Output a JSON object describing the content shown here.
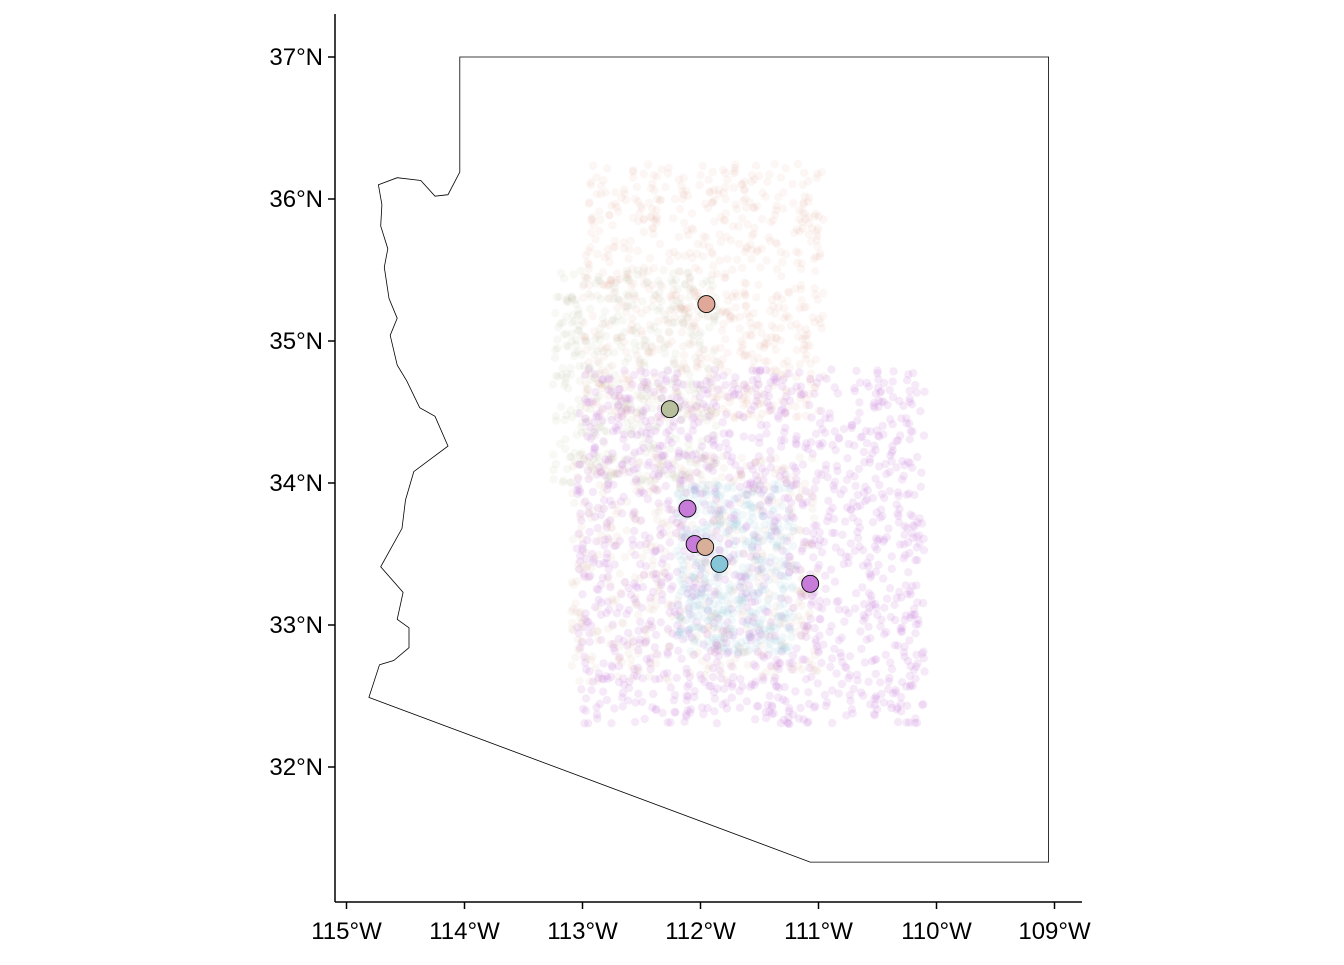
{
  "chart_data": {
    "type": "scatter",
    "title": "",
    "xlabel": "",
    "ylabel": "",
    "xlim": [
      -115.1,
      -108.8
    ],
    "ylim": [
      31.1,
      37.3
    ],
    "grid": false,
    "legend": "none",
    "x_ticks": [
      {
        "value": -115,
        "label": "115°W"
      },
      {
        "value": -114,
        "label": "114°W"
      },
      {
        "value": -113,
        "label": "113°W"
      },
      {
        "value": -112,
        "label": "112°W"
      },
      {
        "value": -111,
        "label": "111°W"
      },
      {
        "value": -110,
        "label": "110°W"
      },
      {
        "value": -109,
        "label": "109°W"
      }
    ],
    "y_ticks": [
      {
        "value": 37,
        "label": "37°N"
      },
      {
        "value": 36,
        "label": "36°N"
      },
      {
        "value": 35,
        "label": "35°N"
      },
      {
        "value": 34,
        "label": "34°N"
      },
      {
        "value": 33,
        "label": "33°N"
      },
      {
        "value": 32,
        "label": "32°N"
      }
    ],
    "state_outline": [
      [
        -114.04,
        37.0
      ],
      [
        -111.0,
        37.0
      ],
      [
        -109.05,
        37.0
      ],
      [
        -109.05,
        31.33
      ],
      [
        -111.07,
        31.33
      ],
      [
        -114.81,
        32.49
      ],
      [
        -114.72,
        32.72
      ],
      [
        -114.6,
        32.75
      ],
      [
        -114.47,
        32.84
      ],
      [
        -114.47,
        32.98
      ],
      [
        -114.57,
        33.04
      ],
      [
        -114.52,
        33.23
      ],
      [
        -114.71,
        33.41
      ],
      [
        -114.53,
        33.68
      ],
      [
        -114.5,
        33.88
      ],
      [
        -114.43,
        34.08
      ],
      [
        -114.14,
        34.26
      ],
      [
        -114.25,
        34.47
      ],
      [
        -114.38,
        34.53
      ],
      [
        -114.49,
        34.72
      ],
      [
        -114.57,
        34.83
      ],
      [
        -114.63,
        35.04
      ],
      [
        -114.57,
        35.16
      ],
      [
        -114.64,
        35.3
      ],
      [
        -114.68,
        35.52
      ],
      [
        -114.65,
        35.65
      ],
      [
        -114.71,
        35.81
      ],
      [
        -114.7,
        35.96
      ],
      [
        -114.73,
        36.1
      ],
      [
        -114.57,
        36.15
      ],
      [
        -114.37,
        36.13
      ],
      [
        -114.25,
        36.02
      ],
      [
        -114.14,
        36.03
      ],
      [
        -114.04,
        36.19
      ]
    ],
    "series": [
      {
        "color": "#e0a898",
        "points": [
          [
            -111.95,
            35.26
          ]
        ],
        "region": [
          -113.0,
          -110.95,
          34.45,
          36.25
        ]
      },
      {
        "color": "#b7bf9c",
        "points": [
          [
            -112.26,
            34.52
          ]
        ],
        "region": [
          -113.25,
          -111.85,
          34.0,
          35.5
        ]
      },
      {
        "color": "#c77cda",
        "points": [
          [
            -112.11,
            33.82
          ],
          [
            -112.05,
            33.57
          ],
          [
            -111.07,
            33.29
          ]
        ],
        "region": [
          -113.05,
          -110.1,
          32.3,
          34.8
        ]
      },
      {
        "color": "#d8b09a",
        "points": [
          [
            -111.96,
            33.55
          ]
        ],
        "region": [
          -113.1,
          -111.0,
          32.6,
          34.2
        ]
      },
      {
        "color": "#86c6d8",
        "points": [
          [
            -111.84,
            33.43
          ]
        ],
        "region": [
          -112.2,
          -111.2,
          32.8,
          34.0
        ]
      }
    ]
  }
}
